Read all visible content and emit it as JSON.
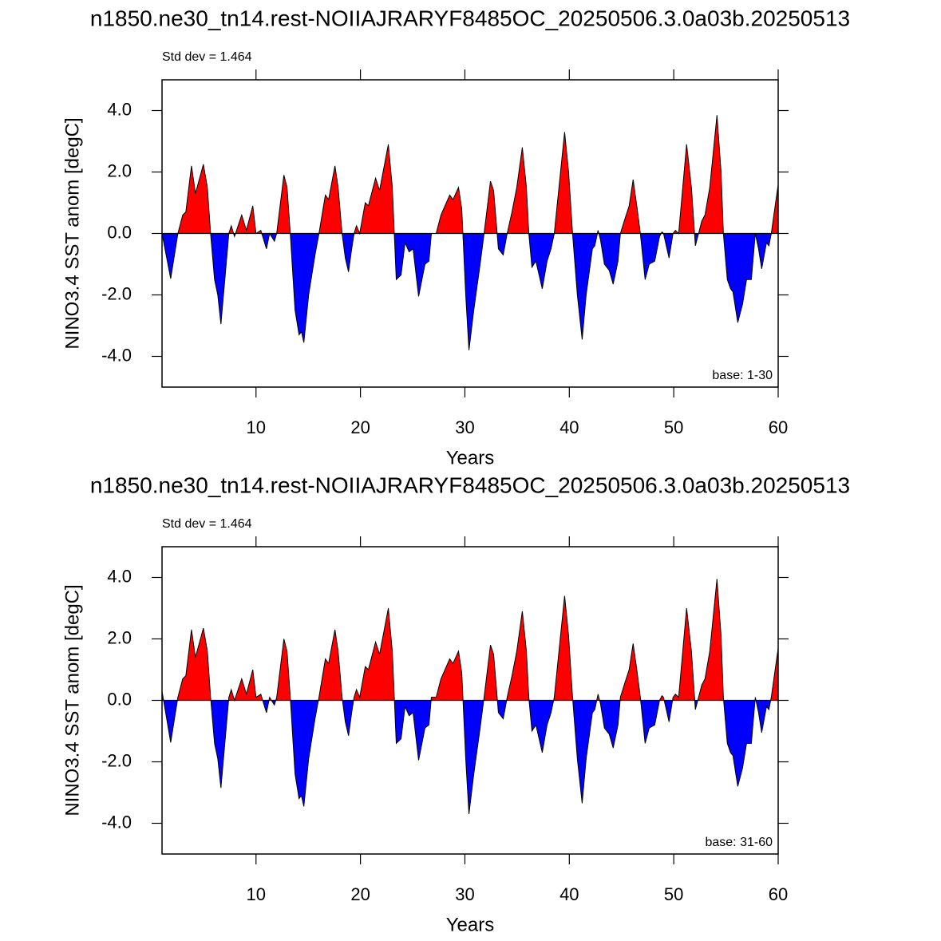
{
  "chart_data": [
    {
      "type": "area",
      "title": "n1850.ne30_tn14.rest-NOIIAJRARYF8485OC_20250506.3.0a03b.20250513",
      "subtitle": "Std dev = 1.464",
      "annotation": "base: 1-30",
      "xlabel": "Years",
      "ylabel": "NINO3.4 SST anom [degC]",
      "xlim": [
        1,
        60
      ],
      "xticks": [
        10,
        20,
        30,
        40,
        50,
        60
      ],
      "ylim": [
        -5,
        5
      ],
      "yticks": [
        {
          "value": 4,
          "label": "4.0"
        },
        {
          "value": 2,
          "label": "2.0"
        },
        {
          "value": 0,
          "label": "0.0"
        },
        {
          "value": -2,
          "label": "-2.0"
        },
        {
          "value": -4,
          "label": "-4.0"
        }
      ],
      "colors": {
        "positive": "#ff0000",
        "negative": "#0000ff"
      },
      "x": [
        1,
        1.83,
        2.52,
        2.98,
        3.28,
        3.82,
        4.2,
        4.96,
        5.34,
        5.65,
        6.03,
        6.34,
        6.64,
        7.4,
        7.63,
        7.94,
        8.63,
        9.08,
        9.69,
        10,
        10.46,
        11,
        11.3,
        11.76,
        11.98,
        12.67,
        12.97,
        13.28,
        13.74,
        14.12,
        14.35,
        14.58,
        15.04,
        15.65,
        16.03,
        16.64,
        16.95,
        17.56,
        17.86,
        18.24,
        18.55,
        18.86,
        19.16,
        19.39,
        19.62,
        19.93,
        20.46,
        20.76,
        21.45,
        21.83,
        22.67,
        23.05,
        23.43,
        23.89,
        24.27,
        24.66,
        25.04,
        25.57,
        26.18,
        26.56,
        26.79,
        27.25,
        27.71,
        28.55,
        28.86,
        29.39,
        29.7,
        30.08,
        30.39,
        30.85,
        31.46,
        31.84,
        32.45,
        32.75,
        33.21,
        33.67,
        34.05,
        34.51,
        34.97,
        35.5,
        35.89,
        36.12,
        36.42,
        36.8,
        37.41,
        37.87,
        38.25,
        38.56,
        39.01,
        39.55,
        39.93,
        40.31,
        40.77,
        41.23,
        41.61,
        42.21,
        42.44,
        42.75,
        42.98,
        43.36,
        43.82,
        44.2,
        44.66,
        44.89,
        45.35,
        45.73,
        46.11,
        46.5,
        46.8,
        47.26,
        47.65,
        48.18,
        48.64,
        48.87,
        49.02,
        49.55,
        49.93,
        50.16,
        50.47,
        51.23,
        51.69,
        52.07,
        52.38,
        52.68,
        52.99,
        53.45,
        54.14,
        54.53,
        54.75,
        55.13,
        55.44,
        55.67,
        56.13,
        56.59,
        56.97,
        57.43,
        57.81,
        58.12,
        58.42,
        58.88,
        59.11,
        59.34,
        60
      ],
      "values": [
        0,
        -1.47,
        0,
        0.6,
        0.7,
        2.2,
        1.3,
        2.25,
        1.5,
        0,
        -1.5,
        -2.0,
        -2.95,
        0,
        0.25,
        -0.1,
        0.6,
        0.1,
        0.9,
        0,
        0.1,
        -0.5,
        0,
        -0.25,
        0,
        1.9,
        1.5,
        0,
        -2.5,
        -3.3,
        -3.2,
        -3.55,
        -2.0,
        -0.7,
        0,
        1.25,
        1.1,
        2.2,
        1.5,
        0,
        -0.8,
        -1.25,
        -0.5,
        0,
        0.25,
        0,
        1.0,
        0.9,
        1.8,
        1.4,
        2.9,
        1.5,
        -1.5,
        -1.35,
        -0.3,
        -0.6,
        -0.5,
        -2.05,
        -1.0,
        -0.9,
        0,
        0,
        0.6,
        1.25,
        1.1,
        1.5,
        0.8,
        -2.0,
        -3.8,
        -2.5,
        -1.0,
        0,
        1.7,
        1.4,
        -0.5,
        -0.7,
        0,
        0.7,
        1.5,
        2.8,
        1.5,
        0,
        -1.1,
        -0.9,
        -1.8,
        -0.9,
        -0.5,
        0,
        1.5,
        3.3,
        2.0,
        0,
        -2.0,
        -3.45,
        -2.0,
        -0.5,
        -0.4,
        0.1,
        -0.2,
        -1.0,
        -1.2,
        -1.65,
        -0.9,
        0,
        0.5,
        0.9,
        1.75,
        0.8,
        0,
        -1.5,
        -1.0,
        -0.9,
        -0.1,
        0.05,
        0,
        -0.8,
        0,
        0.1,
        0,
        2.9,
        1.5,
        -0.4,
        0,
        0.4,
        0.6,
        1.5,
        3.85,
        2.0,
        0,
        -1.5,
        -1.8,
        -1.9,
        -2.9,
        -2.3,
        -1.5,
        -1.5,
        0,
        -0.5,
        -1.15,
        -0.3,
        -0.4,
        0,
        1.6
      ]
    },
    {
      "type": "area",
      "title": "n1850.ne30_tn14.rest-NOIIAJRARYF8485OC_20250506.3.0a03b.20250513",
      "subtitle": "Std dev = 1.464",
      "annotation": "base: 31-60",
      "xlabel": "Years",
      "ylabel": "NINO3.4 SST anom [degC]",
      "xlim": [
        1,
        60
      ],
      "xticks": [
        10,
        20,
        30,
        40,
        50,
        60
      ],
      "ylim": [
        -5,
        5
      ],
      "yticks": [
        {
          "value": 4,
          "label": "4.0"
        },
        {
          "value": 2,
          "label": "2.0"
        },
        {
          "value": 0,
          "label": "0.0"
        },
        {
          "value": -2,
          "label": "-2.0"
        },
        {
          "value": -4,
          "label": "-4.0"
        }
      ],
      "colors": {
        "positive": "#ff0000",
        "negative": "#0000ff"
      },
      "x": [
        1,
        1.83,
        2.52,
        2.98,
        3.28,
        3.82,
        4.2,
        4.96,
        5.34,
        5.65,
        6.03,
        6.34,
        6.64,
        7.4,
        7.63,
        7.94,
        8.63,
        9.08,
        9.69,
        10,
        10.46,
        11,
        11.3,
        11.76,
        11.98,
        12.67,
        12.97,
        13.28,
        13.74,
        14.12,
        14.35,
        14.58,
        15.04,
        15.65,
        16.03,
        16.64,
        16.95,
        17.56,
        17.86,
        18.24,
        18.55,
        18.86,
        19.16,
        19.39,
        19.62,
        19.93,
        20.46,
        20.76,
        21.45,
        21.83,
        22.67,
        23.05,
        23.43,
        23.89,
        24.27,
        24.66,
        25.04,
        25.57,
        26.18,
        26.56,
        26.79,
        27.25,
        27.71,
        28.55,
        28.86,
        29.39,
        29.7,
        30.08,
        30.39,
        30.85,
        31.46,
        31.84,
        32.45,
        32.75,
        33.21,
        33.67,
        34.05,
        34.51,
        34.97,
        35.5,
        35.89,
        36.12,
        36.42,
        36.8,
        37.41,
        37.87,
        38.25,
        38.56,
        39.01,
        39.55,
        39.93,
        40.31,
        40.77,
        41.23,
        41.61,
        42.21,
        42.44,
        42.75,
        42.98,
        43.36,
        43.82,
        44.2,
        44.66,
        44.89,
        45.35,
        45.73,
        46.11,
        46.5,
        46.8,
        47.26,
        47.65,
        48.18,
        48.64,
        48.87,
        49.02,
        49.55,
        49.93,
        50.16,
        50.47,
        51.23,
        51.69,
        52.07,
        52.38,
        52.68,
        52.99,
        53.45,
        54.14,
        54.53,
        54.75,
        55.13,
        55.44,
        55.67,
        56.13,
        56.59,
        56.97,
        57.43,
        57.81,
        58.12,
        58.42,
        58.88,
        59.11,
        59.34,
        60
      ],
      "values": [
        0.3,
        -1.37,
        0.1,
        0.7,
        0.8,
        2.3,
        1.4,
        2.35,
        1.6,
        0.1,
        -1.4,
        -1.9,
        -2.85,
        0.1,
        0.35,
        0,
        0.7,
        0.2,
        1.0,
        0.1,
        0.2,
        -0.4,
        0.1,
        -0.15,
        0.1,
        2.0,
        1.6,
        0.1,
        -2.4,
        -3.2,
        -3.1,
        -3.45,
        -1.9,
        -0.6,
        0.1,
        1.35,
        1.2,
        2.3,
        1.6,
        0.1,
        -0.7,
        -1.15,
        -0.4,
        0.1,
        0.35,
        0.1,
        1.1,
        1.0,
        1.9,
        1.5,
        3.0,
        1.6,
        -1.4,
        -1.25,
        -0.2,
        -0.5,
        -0.4,
        -1.95,
        -0.9,
        -0.8,
        0.1,
        0.1,
        0.7,
        1.35,
        1.2,
        1.6,
        0.9,
        -1.9,
        -3.7,
        -2.4,
        -0.9,
        0.1,
        1.8,
        1.5,
        -0.4,
        -0.6,
        0.1,
        0.8,
        1.6,
        2.9,
        1.6,
        0.1,
        -1.0,
        -0.8,
        -1.7,
        -0.8,
        -0.4,
        0.1,
        1.6,
        3.4,
        2.1,
        0.1,
        -1.9,
        -3.35,
        -1.9,
        -0.4,
        -0.3,
        0.2,
        -0.1,
        -0.9,
        -1.1,
        -1.55,
        -0.8,
        0.1,
        0.6,
        1.0,
        1.85,
        0.9,
        0.1,
        -1.4,
        -0.9,
        -0.8,
        0,
        0.15,
        0.1,
        -0.7,
        0.1,
        0.2,
        0.1,
        3.0,
        1.6,
        -0.3,
        0.1,
        0.5,
        0.7,
        1.6,
        3.95,
        2.1,
        0.1,
        -1.4,
        -1.7,
        -1.8,
        -2.8,
        -2.2,
        -1.4,
        -1.4,
        0.1,
        -0.4,
        -1.05,
        -0.2,
        -0.3,
        0.1,
        1.7
      ]
    }
  ]
}
